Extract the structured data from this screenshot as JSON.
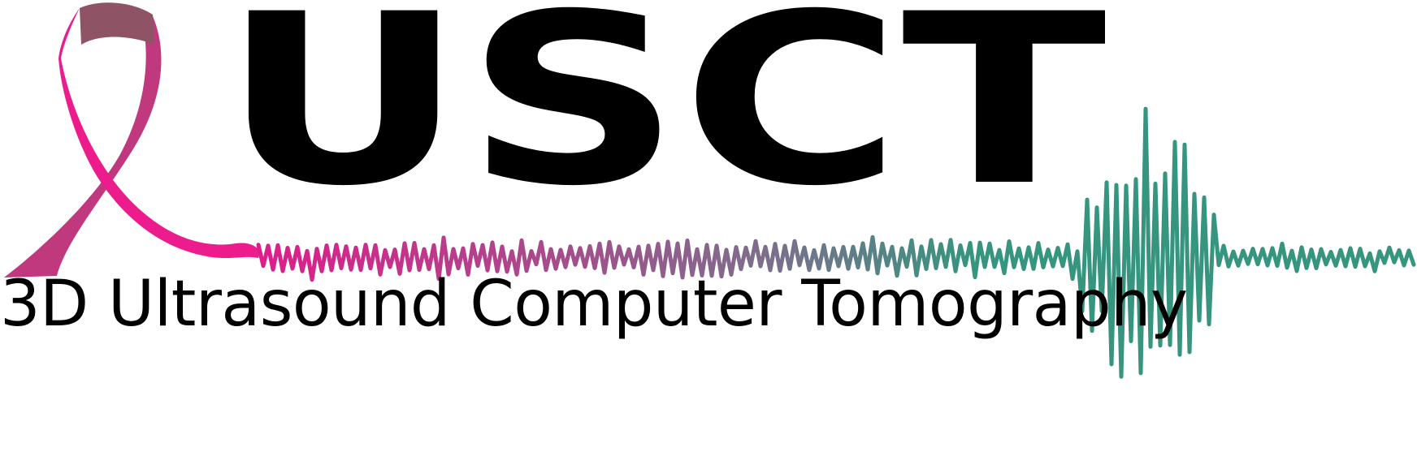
{
  "logo": {
    "wordmark": "USCT",
    "tagline": "3D Ultrasound Computer Tomography",
    "ribbon_icon": "awareness-ribbon-icon",
    "waveform_icon": "ultrasound-waveform-icon"
  },
  "colors": {
    "text": "#000000",
    "ribbon_light": "#ec1c8c",
    "ribbon_dark": "#c0387e",
    "ribbon_fold": "#8e5466",
    "wave_start": "#e21a8a",
    "wave_mid": "#7c6f8c",
    "wave_end": "#36957f"
  }
}
